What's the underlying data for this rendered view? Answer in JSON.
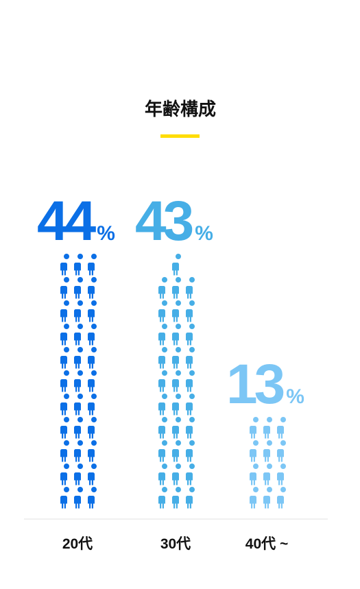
{
  "chart_data": {
    "type": "pictogram",
    "title": "年齢構成",
    "categories": [
      "20代",
      "30代",
      "40代 ~"
    ],
    "values": [
      44,
      43,
      13
    ],
    "unit": "%",
    "icon_counts": [
      33,
      31,
      12
    ],
    "colors": [
      "#0b6fe6",
      "#46aee6",
      "#7cc6f5"
    ]
  }
}
